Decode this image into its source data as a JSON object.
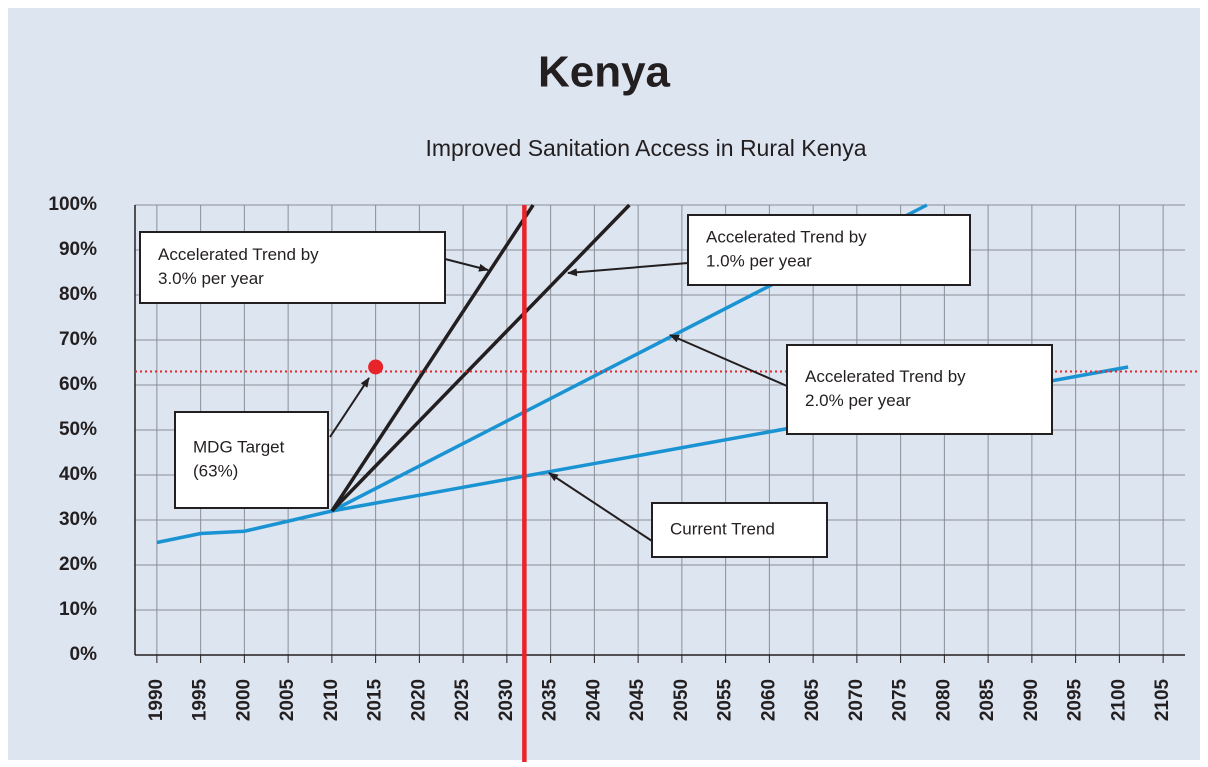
{
  "chart_data": {
    "type": "line",
    "title": "Kenya",
    "subtitle": "Improved Sanitation Access in Rural Kenya",
    "xlim": [
      1987.5,
      2107.5
    ],
    "xticks": [
      1990,
      1995,
      2000,
      2005,
      2010,
      2015,
      2020,
      2025,
      2030,
      2035,
      2040,
      2045,
      2050,
      2055,
      2060,
      2065,
      2070,
      2075,
      2080,
      2085,
      2090,
      2095,
      2100,
      2105
    ],
    "ylim": [
      0,
      100
    ],
    "yticks": [
      {
        "value": 0,
        "label": "0%"
      },
      {
        "value": 10,
        "label": "10%"
      },
      {
        "value": 20,
        "label": "20%"
      },
      {
        "value": 30,
        "label": "30%"
      },
      {
        "value": 40,
        "label": "40%"
      },
      {
        "value": 50,
        "label": "50%"
      },
      {
        "value": 60,
        "label": "60%"
      },
      {
        "value": 70,
        "label": "70%"
      },
      {
        "value": 80,
        "label": "80%"
      },
      {
        "value": 90,
        "label": "90%"
      },
      {
        "value": 100,
        "label": "100%"
      }
    ],
    "grid": true,
    "series": [
      {
        "color": "#1a93d3",
        "x": [
          1990,
          1995,
          2000,
          2010,
          2101
        ],
        "values": [
          25,
          27,
          27.5,
          32,
          64
        ]
      },
      {
        "color": "#1a93d3",
        "x": [
          2010,
          2078
        ],
        "values": [
          32,
          100
        ]
      },
      {
        "color": "#231f20",
        "x": [
          2010,
          2044
        ],
        "values": [
          32,
          100
        ]
      },
      {
        "color": "#231f20",
        "x": [
          2010,
          2033
        ],
        "values": [
          32,
          100
        ]
      }
    ],
    "reference_lines": [
      {
        "axis": "x",
        "value": 2032,
        "color": "#e8242b",
        "style": "solid"
      },
      {
        "axis": "y",
        "value": 63,
        "color": "#e8242b",
        "style": "dotted"
      }
    ],
    "points": [
      {
        "x": 2015,
        "y": 64,
        "color": "#e8242b"
      }
    ],
    "annotations": [
      {
        "text": [
          "Accelerated Trend by",
          "3.0% per year"
        ]
      },
      {
        "text": [
          "Accelerated Trend by",
          "1.0% per year"
        ]
      },
      {
        "text": [
          "Accelerated Trend by",
          "2.0% per year"
        ]
      },
      {
        "text": [
          "MDG Target",
          "(63%)"
        ]
      },
      {
        "text": [
          "Current Trend"
        ]
      }
    ]
  }
}
